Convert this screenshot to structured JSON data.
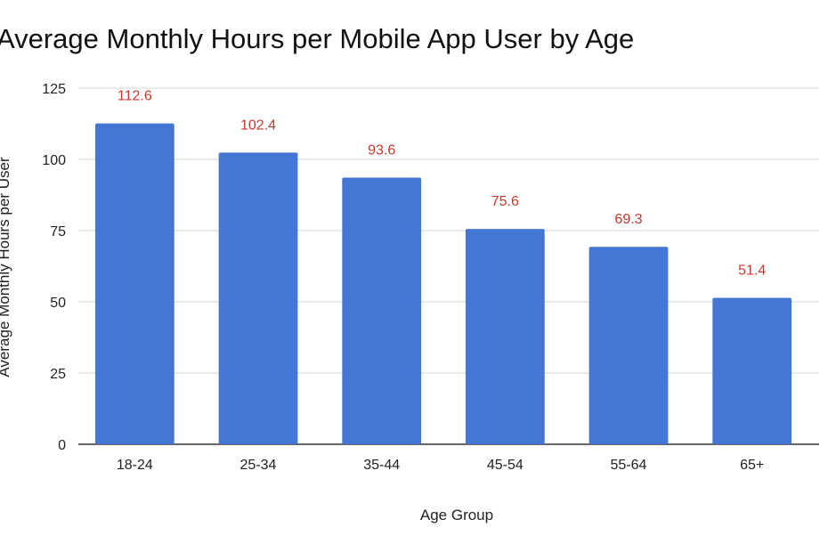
{
  "title": "Average Monthly Hours per Mobile App User by Age",
  "colors": {
    "bar": "#4477d4",
    "data_label": "#c8372d",
    "grid": "#d4d4d4",
    "baseline": "#333333"
  },
  "chart_data": {
    "type": "bar",
    "title": "Average Monthly Hours per Mobile App User by Age",
    "xlabel": "Age Group",
    "ylabel": "Average Monthly Hours per User",
    "categories": [
      "18-24",
      "25-34",
      "35-44",
      "45-54",
      "55-64",
      "65+"
    ],
    "values": [
      112.6,
      102.4,
      93.6,
      75.6,
      69.3,
      51.4
    ],
    "data_labels": [
      "112.6",
      "102.4",
      "93.6",
      "75.6",
      "69.3",
      "51.4"
    ],
    "ylim": [
      0,
      125
    ],
    "yticks": [
      0,
      25,
      50,
      75,
      100,
      125
    ],
    "grid": true,
    "legend": "none"
  }
}
